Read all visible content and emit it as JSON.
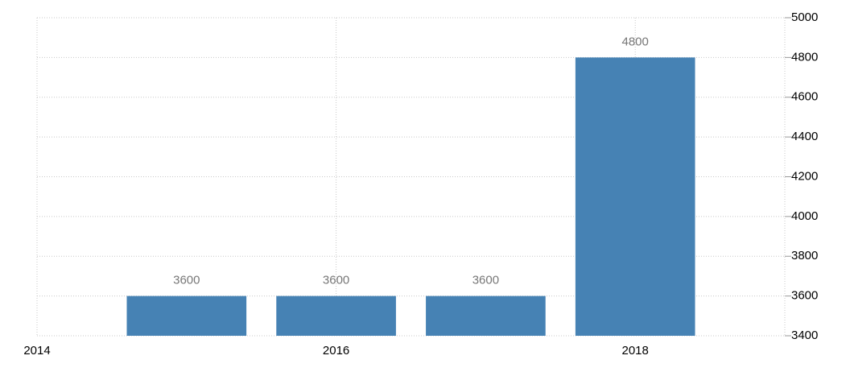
{
  "chart_data": {
    "type": "bar",
    "x": [
      2015,
      2016,
      2017,
      2018
    ],
    "values": [
      3600,
      3600,
      3600,
      4800
    ],
    "color": "#4682b4",
    "xlim": [
      2014,
      2019
    ],
    "xticks": [
      2014,
      2016,
      2018
    ],
    "ylim": [
      3400,
      5000
    ],
    "yticks": [
      3400,
      3600,
      3800,
      4000,
      4200,
      4400,
      4600,
      4800,
      5000
    ],
    "grid": true
  }
}
